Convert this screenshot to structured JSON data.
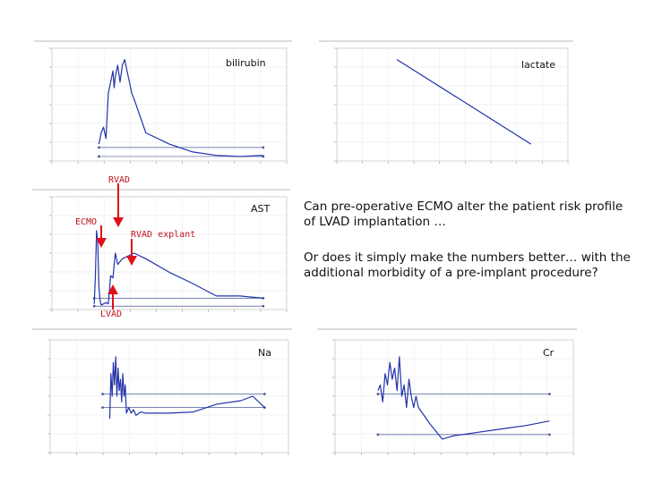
{
  "text": {
    "question1": "Can pre-operative ECMO alter the patient risk profile of LVAD implantation …",
    "question2": "Or does it simply make the numbers better… with the additional morbidity of a pre-implant procedure?"
  },
  "annotations": {
    "rvad": "RVAD",
    "ecmo": "ECMO",
    "rvad_explant": "RVAD explant",
    "lvad": "LVAD"
  },
  "colors": {
    "series": "#2233aa",
    "reference": "#4a5a9a",
    "annotation": "#c0101a",
    "arrow": "#e0101a"
  },
  "chart_data": [
    {
      "id": "bilirubin",
      "type": "line",
      "title": "bilirubin",
      "xlim": [
        0,
        100
      ],
      "ylim": [
        0,
        10
      ],
      "grid": true,
      "x": [
        20,
        21,
        22,
        23,
        23.5,
        24,
        25,
        26,
        26.5,
        27,
        28,
        29,
        30,
        31,
        32,
        33,
        34,
        35,
        40,
        50,
        60,
        70,
        80,
        90
      ],
      "series": [
        {
          "values": [
            1.5,
            2.5,
            3,
            2,
            4,
            6,
            7,
            8,
            6.5,
            7.5,
            8.5,
            7,
            8.5,
            9,
            8,
            7,
            6,
            5.5,
            2.5,
            1.5,
            0.8,
            0.5,
            0.4,
            0.5
          ]
        }
      ],
      "reference_lines": [
        {
          "y": 1.2,
          "x": [
            20,
            90
          ]
        },
        {
          "y": 0.4,
          "x": [
            20,
            90
          ]
        }
      ]
    },
    {
      "id": "lactate",
      "type": "line",
      "title": "lactate",
      "xlim": [
        0,
        100
      ],
      "ylim": [
        0,
        10
      ],
      "grid": true,
      "x": [
        26,
        84
      ],
      "series": [
        {
          "values": [
            9,
            1.5
          ]
        }
      ],
      "reference_lines": []
    },
    {
      "id": "ast",
      "type": "line",
      "title": "AST",
      "xlim": [
        0,
        100
      ],
      "ylim": [
        0,
        10
      ],
      "grid": true,
      "x": [
        18,
        18.5,
        19,
        19.5,
        20,
        20.5,
        21,
        22,
        23,
        24,
        25,
        26,
        27,
        28,
        30,
        35,
        40,
        50,
        60,
        70,
        80,
        90
      ],
      "series": [
        {
          "values": [
            0.5,
            3,
            7,
            6,
            2,
            0.8,
            0.4,
            0.5,
            0.6,
            0.5,
            3,
            2.8,
            5,
            4,
            4.5,
            5,
            4.5,
            3.3,
            2.3,
            1.2,
            1.2,
            1
          ]
        }
      ],
      "reference_lines": [
        {
          "y": 1.0,
          "x": [
            18,
            90
          ]
        },
        {
          "y": 0.3,
          "x": [
            18,
            90
          ]
        }
      ]
    },
    {
      "id": "na",
      "type": "line",
      "title": "Na",
      "xlim": [
        0,
        100
      ],
      "ylim": [
        0,
        10
      ],
      "grid": true,
      "x": [
        25,
        25.5,
        26,
        26.5,
        27,
        27.5,
        28,
        28.5,
        29,
        29.5,
        30,
        30.5,
        31,
        31.5,
        32,
        33,
        34,
        35,
        36,
        38,
        40,
        50,
        60,
        70,
        80,
        85,
        90
      ],
      "series": [
        {
          "values": [
            3,
            7,
            5,
            8,
            6,
            8.5,
            5,
            7.5,
            5.5,
            6.5,
            4.5,
            7,
            5,
            6,
            3.5,
            4,
            3.5,
            3.8,
            3.3,
            3.6,
            3.5,
            3.5,
            3.6,
            4.3,
            4.6,
            5,
            4
          ]
        }
      ],
      "reference_lines": [
        {
          "y": 5.2,
          "x": [
            22,
            90
          ]
        },
        {
          "y": 4.0,
          "x": [
            22,
            90
          ]
        }
      ]
    },
    {
      "id": "cr",
      "type": "line",
      "title": "Cr",
      "xlim": [
        0,
        100
      ],
      "ylim": [
        0,
        10
      ],
      "grid": true,
      "x": [
        18,
        19,
        20,
        21,
        22,
        23,
        24,
        25,
        26,
        27,
        28,
        29,
        30,
        31,
        32,
        33,
        34,
        35,
        40,
        45,
        50,
        60,
        70,
        80,
        90
      ],
      "series": [
        {
          "values": [
            5.5,
            6,
            4.5,
            7,
            6,
            8,
            6.5,
            7.5,
            5.5,
            8.5,
            5,
            6,
            4,
            6.5,
            5,
            4,
            5,
            4,
            2.5,
            1.2,
            1.5,
            1.8,
            2.1,
            2.4,
            2.8
          ]
        }
      ],
      "reference_lines": [
        {
          "y": 5.2,
          "x": [
            18,
            90
          ]
        },
        {
          "y": 1.6,
          "x": [
            18,
            90
          ]
        }
      ]
    }
  ]
}
